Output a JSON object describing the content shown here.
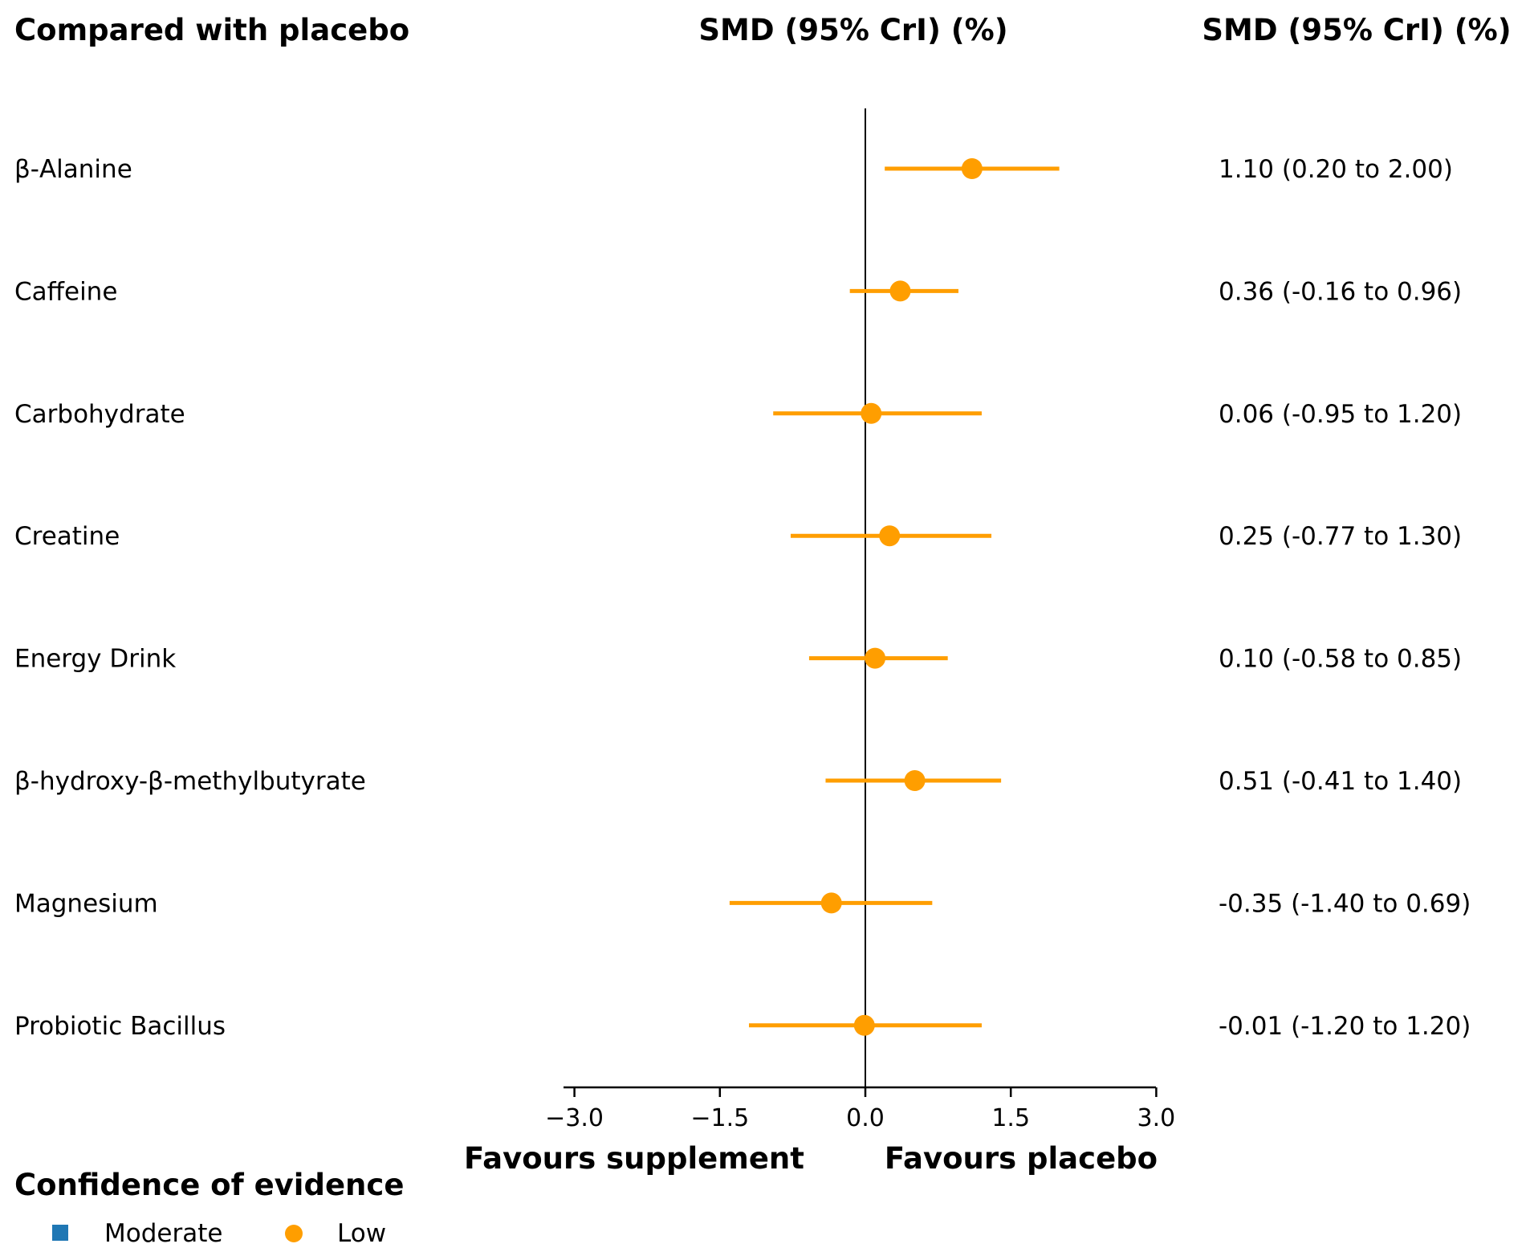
{
  "chart_data": {
    "type": "forest",
    "headers": {
      "left": "Compared with placebo",
      "center": "SMD (95% CrI) (%)",
      "right": "SMD (95% CrI) (%)"
    },
    "rows": [
      {
        "label": "β-Alanine",
        "est": 1.1,
        "lo": 0.2,
        "hi": 2.0,
        "text": "1.10 (0.20 to 2.00)",
        "confidence": "Low"
      },
      {
        "label": "Caffeine",
        "est": 0.36,
        "lo": -0.16,
        "hi": 0.96,
        "text": "0.36 (-0.16 to 0.96)",
        "confidence": "Low"
      },
      {
        "label": "Carbohydrate",
        "est": 0.06,
        "lo": -0.95,
        "hi": 1.2,
        "text": "0.06 (-0.95 to 1.20)",
        "confidence": "Low"
      },
      {
        "label": "Creatine",
        "est": 0.25,
        "lo": -0.77,
        "hi": 1.3,
        "text": "0.25 (-0.77 to 1.30)",
        "confidence": "Low"
      },
      {
        "label": "Energy Drink",
        "est": 0.1,
        "lo": -0.58,
        "hi": 0.85,
        "text": "0.10 (-0.58 to 0.85)",
        "confidence": "Low"
      },
      {
        "label": "β-hydroxy-β-methylbutyrate",
        "est": 0.51,
        "lo": -0.41,
        "hi": 1.4,
        "text": "0.51 (-0.41 to 1.40)",
        "confidence": "Low"
      },
      {
        "label": "Magnesium",
        "est": -0.35,
        "lo": -1.4,
        "hi": 0.69,
        "text": "-0.35 (-1.40 to 0.69)",
        "confidence": "Low"
      },
      {
        "label": "Probiotic Bacillus",
        "est": -0.01,
        "lo": -1.2,
        "hi": 1.2,
        "text": "-0.01 (-1.20 to 1.20)",
        "confidence": "Low"
      }
    ],
    "xlim": [
      -3.1,
      3.0
    ],
    "xticks": [
      -3.0,
      -1.5,
      0.0,
      1.5,
      3.0
    ],
    "xtick_labels": [
      "−3.0",
      "−1.5",
      "0.0",
      "1.5",
      "3.0"
    ],
    "reference_line": 0,
    "favours_left": "Favours supplement",
    "favours_right": "Favours placebo",
    "legend": {
      "title": "Confidence of evidence",
      "entries": [
        {
          "label": "Moderate",
          "marker": "square",
          "color": "#1f77b4"
        },
        {
          "label": "Low",
          "marker": "circle",
          "color": "#ff9e00"
        }
      ]
    },
    "colors": {
      "Low": "#ff9e00",
      "Moderate": "#1f77b4"
    }
  }
}
